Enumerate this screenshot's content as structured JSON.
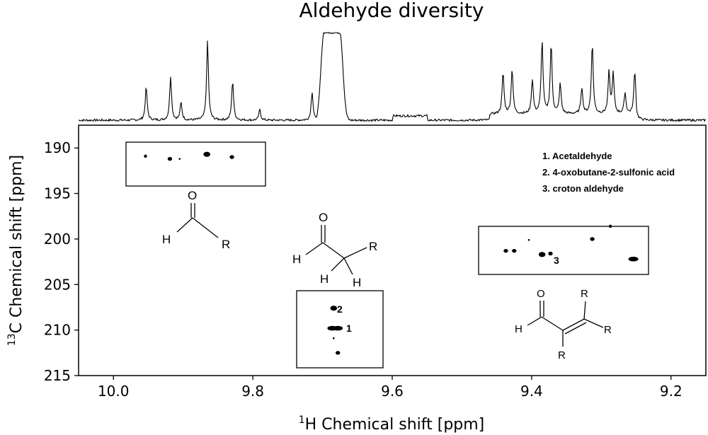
{
  "chart_data": {
    "type": "scatter",
    "title": "Aldehyde diversity",
    "xlabel": {
      "sup": "1",
      "text": "H Chemical shift [ppm]"
    },
    "ylabel": {
      "sup": "13",
      "text": "C Chemical shift [ppm]"
    },
    "xlim": [
      10.05,
      9.15
    ],
    "ylim": [
      215,
      187.5
    ],
    "xticks": [
      "10.0",
      "9.8",
      "9.6",
      "9.4",
      "9.2"
    ],
    "xtick_values": [
      10.0,
      9.8,
      9.6,
      9.4,
      9.2
    ],
    "yticks": [
      "190",
      "195",
      "200",
      "205",
      "210",
      "215"
    ],
    "ytick_values": [
      190,
      195,
      200,
      205,
      210,
      215
    ],
    "legend": [
      "1. Acetaldehyde",
      "2. 4-oxobutane-2-sulfonic acid",
      "3. croton aldehyde"
    ],
    "peak_labels": [
      "2",
      "1",
      "3"
    ],
    "spectrum_1d_peaks": [
      {
        "x": 9.953,
        "h": 0.38
      },
      {
        "x": 9.918,
        "h": 0.5
      },
      {
        "x": 9.903,
        "h": 0.2
      },
      {
        "x": 9.865,
        "h": 0.9
      },
      {
        "x": 9.829,
        "h": 0.45
      },
      {
        "x": 9.79,
        "h": 0.12
      },
      {
        "x": 9.715,
        "h": 0.33
      },
      {
        "x": 9.441,
        "h": 0.47
      },
      {
        "x": 9.428,
        "h": 0.51
      },
      {
        "x": 9.399,
        "h": 0.39
      },
      {
        "x": 9.385,
        "h": 0.83
      },
      {
        "x": 9.372,
        "h": 0.79
      },
      {
        "x": 9.359,
        "h": 0.34
      },
      {
        "x": 9.328,
        "h": 0.3
      },
      {
        "x": 9.313,
        "h": 0.8
      },
      {
        "x": 9.289,
        "h": 0.47
      },
      {
        "x": 9.283,
        "h": 0.45
      },
      {
        "x": 9.266,
        "h": 0.24
      },
      {
        "x": 9.252,
        "h": 0.49
      }
    ],
    "spectrum_1d_broad": {
      "x_from": 9.698,
      "x_to": 9.675,
      "h": 1.0
    },
    "spots_2d": [
      {
        "x": 9.954,
        "y": 190.9,
        "size": "small"
      },
      {
        "x": 9.919,
        "y": 191.2,
        "size": "medium"
      },
      {
        "x": 9.905,
        "y": 191.2,
        "size": "tiny"
      },
      {
        "x": 9.866,
        "y": 190.7,
        "size": "large"
      },
      {
        "x": 9.83,
        "y": 191.0,
        "size": "medium"
      },
      {
        "x": 9.684,
        "y": 207.6,
        "size": "large"
      },
      {
        "x": 9.686,
        "y": 209.8,
        "size": "wide"
      },
      {
        "x": 9.678,
        "y": 209.8,
        "size": "wide"
      },
      {
        "x": 9.684,
        "y": 210.9,
        "size": "tiny"
      },
      {
        "x": 9.678,
        "y": 212.5,
        "size": "medium"
      },
      {
        "x": 9.437,
        "y": 201.3,
        "size": "medium"
      },
      {
        "x": 9.425,
        "y": 201.3,
        "size": "medium"
      },
      {
        "x": 9.404,
        "y": 200.1,
        "size": "tiny"
      },
      {
        "x": 9.385,
        "y": 201.7,
        "size": "large"
      },
      {
        "x": 9.373,
        "y": 201.6,
        "size": "medium"
      },
      {
        "x": 9.313,
        "y": 200.0,
        "size": "medium"
      },
      {
        "x": 9.287,
        "y": 198.6,
        "size": "small"
      },
      {
        "x": 9.254,
        "y": 202.2,
        "size": "wide"
      }
    ],
    "structure_labels": {
      "generic": {
        "O": "O",
        "H": "H",
        "R": "R"
      },
      "alpha_ch2": {
        "O": "O",
        "H1": "H",
        "R": "R",
        "H2": "H",
        "H3": "H"
      },
      "unsaturated": {
        "O": "O",
        "H": "H",
        "R1": "R",
        "R2": "R",
        "R3": "R"
      }
    }
  }
}
